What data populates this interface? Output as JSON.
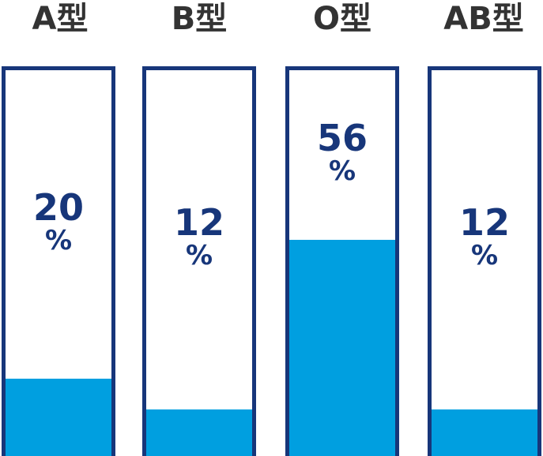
{
  "chart_data": {
    "type": "bar",
    "categories": [
      "A型",
      "B型",
      "O型",
      "AB型"
    ],
    "values": [
      20,
      12,
      56,
      12
    ],
    "unit": "%",
    "ylim": [
      0,
      100
    ],
    "grid": false,
    "legend": "none",
    "colors": {
      "fill": "#009fe0",
      "outline": "#17367a",
      "label_text": "#333333",
      "value_text": "#17367a"
    }
  }
}
